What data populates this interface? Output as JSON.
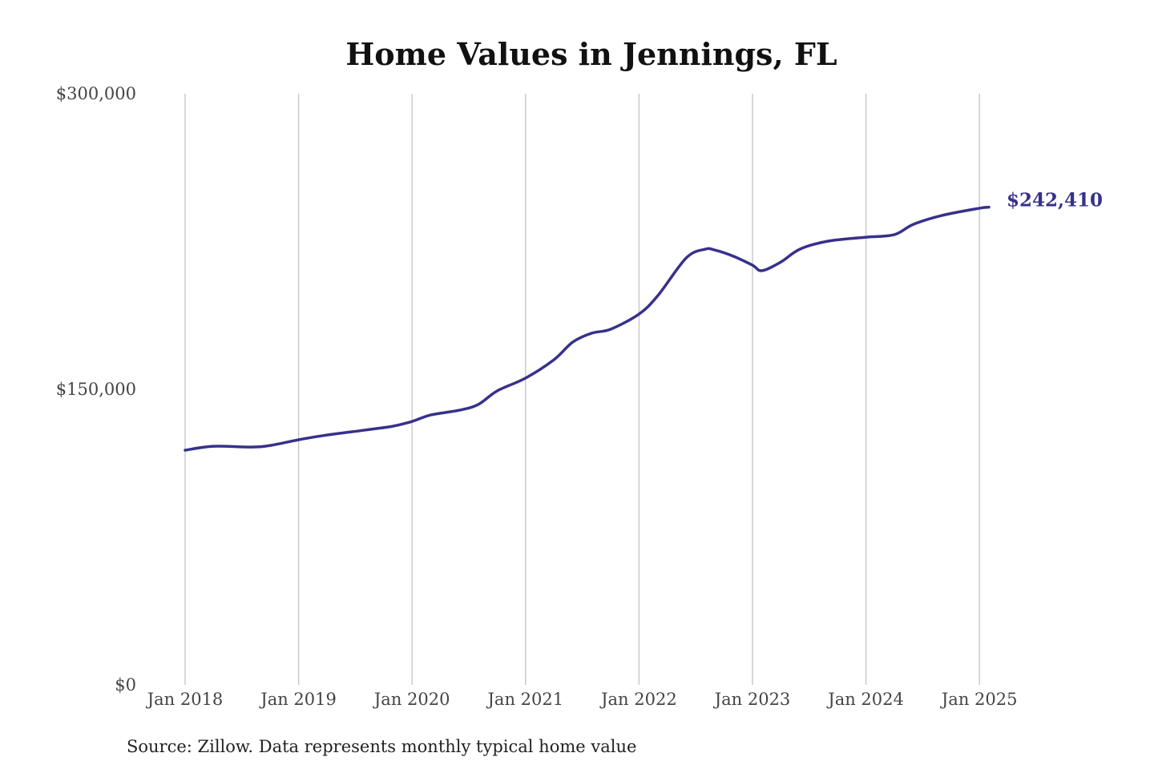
{
  "chart_data": {
    "type": "line",
    "title": "Home Values in Jennings, FL",
    "source": "Source: Zillow. Data represents monthly typical home value",
    "xlabel": "",
    "ylabel": "",
    "ylim": [
      0,
      300000
    ],
    "y_ticks": [
      0,
      150000,
      300000
    ],
    "y_tick_labels": [
      "$0",
      "$150,000",
      "$300,000"
    ],
    "x_ticks": [
      "2018-01",
      "2019-01",
      "2020-01",
      "2021-01",
      "2022-01",
      "2023-01",
      "2024-01",
      "2025-01"
    ],
    "x_tick_labels": [
      "Jan 2018",
      "Jan 2019",
      "Jan 2020",
      "Jan 2021",
      "Jan 2022",
      "Jan 2023",
      "Jan 2024",
      "Jan 2025"
    ],
    "grid": "vertical",
    "line_color": "#36318a",
    "end_label": "$242,410",
    "series": [
      {
        "x": [
          "2018-01",
          "2018-04",
          "2018-08",
          "2018-10",
          "2019-01",
          "2019-04",
          "2019-08",
          "2019-11",
          "2020-01",
          "2020-03",
          "2020-06",
          "2020-08",
          "2020-10",
          "2021-01",
          "2021-04",
          "2021-06",
          "2021-08",
          "2021-10",
          "2022-01",
          "2022-03",
          "2022-06",
          "2022-08",
          "2022-09",
          "2022-11",
          "2023-01",
          "2023-02",
          "2023-04",
          "2023-06",
          "2023-09",
          "2024-01",
          "2024-04",
          "2024-06",
          "2024-09",
          "2025-01",
          "2025-02"
        ],
        "values": [
          119100,
          121100,
          120700,
          121500,
          124400,
          126800,
          129300,
          131300,
          133700,
          137000,
          139400,
          142300,
          149200,
          155700,
          165000,
          174000,
          178500,
          180500,
          188200,
          197600,
          216700,
          221100,
          220700,
          217500,
          213000,
          210200,
          214600,
          221100,
          225200,
          227200,
          228500,
          233700,
          238200,
          241900,
          242410
        ]
      }
    ]
  }
}
